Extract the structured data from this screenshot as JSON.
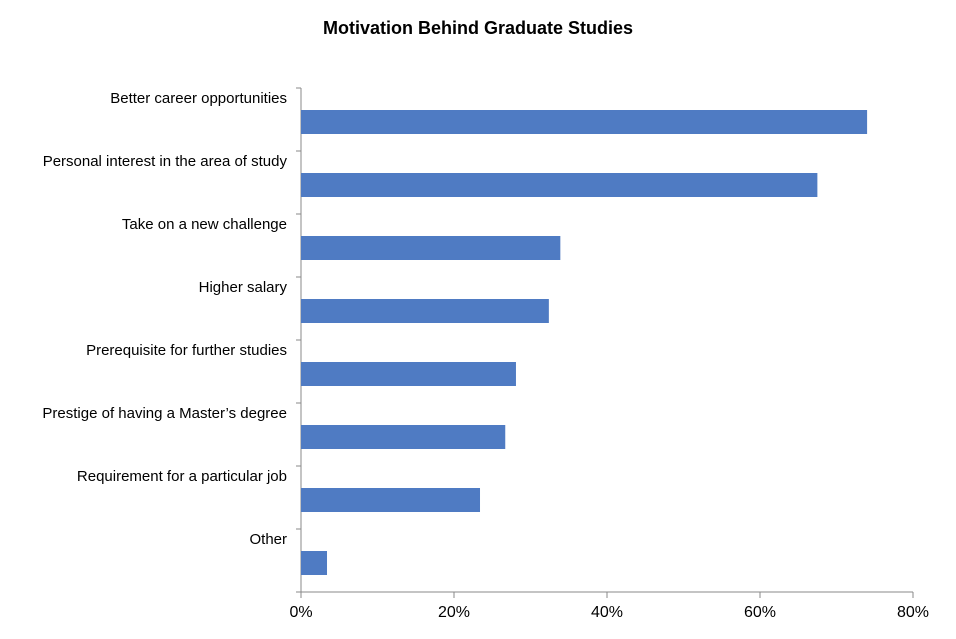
{
  "chart_data": {
    "type": "bar",
    "orientation": "horizontal",
    "title": "Motivation Behind Graduate Studies",
    "categories": [
      "Better career opportunities",
      "Personal interest in the area of study",
      "Take on a new challenge",
      "Higher salary",
      "Prerequisite for further studies",
      "Prestige of having a Master’s degree",
      "Requirement for a particular job",
      "Other"
    ],
    "values": [
      74.0,
      67.5,
      33.9,
      32.4,
      28.1,
      26.7,
      23.4,
      3.4
    ],
    "color": "#4f7bc3",
    "xlim": [
      0,
      80
    ],
    "xticks": [
      {
        "value": 0,
        "label": "0%"
      },
      {
        "value": 20,
        "label": "20%"
      },
      {
        "value": 40,
        "label": "40%"
      },
      {
        "value": 60,
        "label": "60%"
      },
      {
        "value": 80,
        "label": "80%"
      }
    ],
    "grid": false
  }
}
